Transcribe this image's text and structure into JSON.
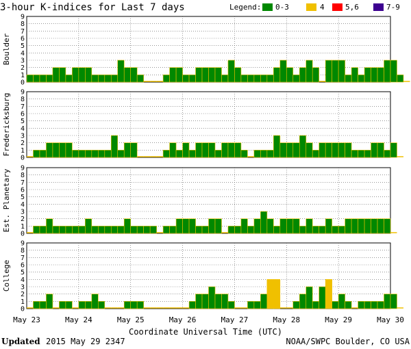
{
  "title": "3-hour K-indices for Last 7 days",
  "legend": {
    "label": "Legend:",
    "items": [
      {
        "label": "0-3",
        "color": "#008800"
      },
      {
        "label": "4",
        "color": "#f0c000"
      },
      {
        "label": "5,6",
        "color": "#ff0000"
      },
      {
        "label": "7-9",
        "color": "#3c0090"
      }
    ]
  },
  "xlabel": "Coordinate Universal Time (UTC)",
  "footer": {
    "updated_label": "Updated",
    "updated_value": "2015 May 29 2347",
    "source": "NOAA/SWPC Boulder, CO USA"
  },
  "chart_data": {
    "type": "bar",
    "x_ticks": [
      "May 23",
      "May 24",
      "May 25",
      "May 26",
      "May 27",
      "May 28",
      "May 29",
      "May 30"
    ],
    "y_ticks": [
      "0",
      "1",
      "2",
      "3",
      "4",
      "5",
      "6",
      "7",
      "8",
      "9"
    ],
    "ylim": [
      0,
      9
    ],
    "bins_per_day": 8,
    "grid": true,
    "panels": [
      {
        "name": "Boulder",
        "values": [
          1,
          1,
          1,
          1,
          2,
          2,
          1,
          2,
          2,
          2,
          1,
          1,
          1,
          1,
          3,
          2,
          2,
          1,
          0,
          0,
          0,
          1,
          2,
          2,
          1,
          1,
          2,
          2,
          2,
          2,
          1,
          3,
          2,
          1,
          1,
          1,
          1,
          1,
          2,
          3,
          2,
          1,
          2,
          3,
          2,
          0,
          3,
          3,
          3,
          1,
          2,
          1,
          2,
          2,
          2,
          3,
          3,
          1,
          0
        ]
      },
      {
        "name": "Fredericksburg",
        "values": [
          0,
          1,
          1,
          2,
          2,
          2,
          2,
          1,
          1,
          1,
          1,
          1,
          1,
          3,
          1,
          2,
          2,
          0,
          0,
          0,
          0,
          1,
          2,
          1,
          2,
          1,
          2,
          2,
          2,
          1,
          2,
          2,
          2,
          1,
          0,
          1,
          1,
          1,
          3,
          2,
          2,
          2,
          3,
          2,
          1,
          2,
          2,
          2,
          2,
          2,
          1,
          1,
          1,
          2,
          2,
          1,
          2,
          0
        ]
      },
      {
        "name": "Est. Planetary",
        "values": [
          0,
          1,
          1,
          2,
          1,
          1,
          1,
          1,
          1,
          2,
          1,
          1,
          1,
          1,
          1,
          2,
          1,
          1,
          1,
          1,
          0,
          1,
          1,
          2,
          2,
          2,
          1,
          1,
          2,
          2,
          0,
          1,
          1,
          2,
          1,
          2,
          3,
          2,
          1,
          2,
          2,
          2,
          1,
          2,
          1,
          1,
          2,
          1,
          1,
          2,
          2,
          2,
          2,
          2,
          2,
          2,
          0
        ]
      },
      {
        "name": "College",
        "values": [
          0,
          1,
          1,
          2,
          0,
          1,
          1,
          0,
          1,
          1,
          2,
          1,
          0,
          0,
          0,
          1,
          1,
          1,
          0,
          0,
          0,
          0,
          0,
          0,
          0,
          1,
          2,
          2,
          3,
          2,
          2,
          1,
          0,
          0,
          1,
          1,
          2,
          4,
          4,
          0,
          0,
          1,
          2,
          3,
          1,
          3,
          4,
          1,
          2,
          1,
          0,
          1,
          1,
          1,
          1,
          2,
          2,
          0
        ]
      }
    ]
  }
}
